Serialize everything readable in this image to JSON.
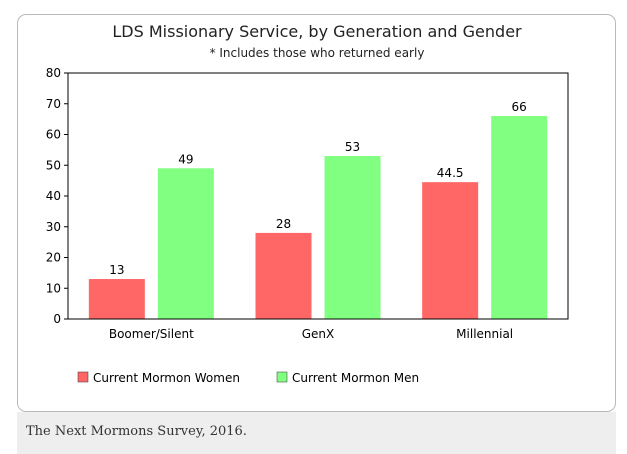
{
  "chart_data": {
    "type": "bar",
    "title": "LDS Missionary Service, by Generation and Gender",
    "subtitle": "* Includes those who returned early",
    "categories": [
      "Boomer/Silent",
      "GenX",
      "Millennial"
    ],
    "series": [
      {
        "name": "Current Mormon Women",
        "color": "#ff6666",
        "values": [
          13,
          28,
          44.5
        ],
        "labels": [
          "13",
          "28",
          "44.5"
        ]
      },
      {
        "name": "Current Mormon Men",
        "color": "#80ff80",
        "values": [
          49,
          53,
          66
        ],
        "labels": [
          "49",
          "53",
          "66"
        ]
      }
    ],
    "ylim": [
      0,
      80
    ],
    "yticks": [
      0,
      10,
      20,
      30,
      40,
      50,
      60,
      70,
      80
    ],
    "grid": false,
    "legend_position": "bottom-left"
  },
  "source_caption": "The Next Mormons Survey, 2016."
}
